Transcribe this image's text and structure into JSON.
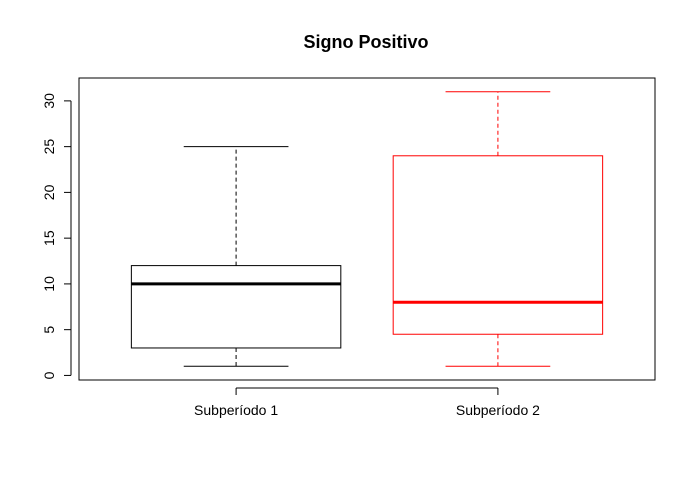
{
  "chart_data": {
    "type": "boxplot",
    "title": "Signo Positivo",
    "xlabel": "",
    "ylabel": "",
    "ylim": [
      -0.5,
      32.5
    ],
    "y_ticks": [
      0,
      5,
      10,
      15,
      20,
      25,
      30
    ],
    "y_tick_labels": [
      "0",
      "5",
      "10",
      "15",
      "20",
      "25",
      "30"
    ],
    "categories": [
      "Subperíodo 1",
      "Subperíodo 2"
    ],
    "boxes": [
      {
        "category": "Subperíodo 1",
        "whisker_low": 1,
        "q1": 3,
        "median": 10,
        "q3": 12,
        "whisker_high": 25,
        "color": "#000000"
      },
      {
        "category": "Subperíodo 2",
        "whisker_low": 1,
        "q1": 4.5,
        "median": 8,
        "q3": 24,
        "whisker_high": 31,
        "color": "#ff0000"
      }
    ],
    "grid": false,
    "legend": "none"
  }
}
